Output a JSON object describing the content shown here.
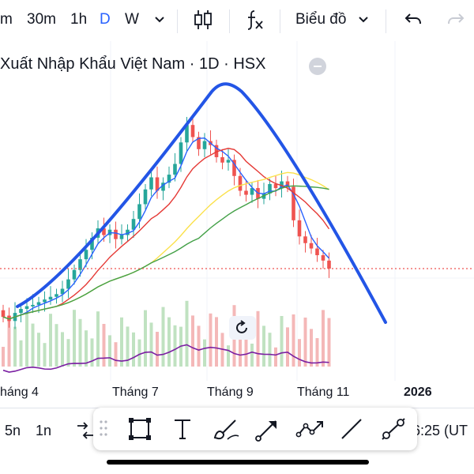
{
  "toolbar": {
    "intervals": [
      "m",
      "30m",
      "1h",
      "D",
      "W"
    ],
    "active_interval": "D",
    "indicators_icon": "fx-icon",
    "chart_type_label": "Biểu đồ"
  },
  "legend": {
    "symbol_title": "Xuất Nhập Khẩu Việt Nam · 1D · HSX"
  },
  "x_axis": {
    "labels": [
      "háng 4",
      "Tháng 7",
      "Tháng 9",
      "Tháng 11",
      "2026"
    ]
  },
  "bottom_bar": {
    "ranges": [
      "5n",
      "1n"
    ],
    "time_label": "6:25 (UT"
  },
  "drawing_tools": [
    "rectangle-tool-icon",
    "text-tool-icon",
    "brush-tool-icon",
    "arrow-tool-icon",
    "path-tool-icon",
    "line-tool-icon",
    "extended-line-tool-icon"
  ],
  "chart_data": {
    "type": "candlestick",
    "candles": [
      {
        "o": 51,
        "c": 46
      },
      {
        "o": 47,
        "c": 43
      },
      {
        "o": 43,
        "c": 49
      },
      {
        "o": 49,
        "c": 52
      },
      {
        "o": 52,
        "c": 54
      },
      {
        "o": 54,
        "c": 55
      },
      {
        "o": 55,
        "c": 57
      },
      {
        "o": 57,
        "c": 59
      },
      {
        "o": 59,
        "c": 61
      },
      {
        "o": 61,
        "c": 63
      },
      {
        "o": 63,
        "c": 67
      },
      {
        "o": 67,
        "c": 74
      },
      {
        "o": 74,
        "c": 81
      },
      {
        "o": 81,
        "c": 89
      },
      {
        "o": 89,
        "c": 96
      },
      {
        "o": 96,
        "c": 105
      },
      {
        "o": 105,
        "c": 112
      },
      {
        "o": 112,
        "c": 107
      },
      {
        "o": 107,
        "c": 111
      },
      {
        "o": 111,
        "c": 104
      },
      {
        "o": 104,
        "c": 107
      },
      {
        "o": 107,
        "c": 111
      },
      {
        "o": 111,
        "c": 119
      },
      {
        "o": 119,
        "c": 130
      },
      {
        "o": 130,
        "c": 141
      },
      {
        "o": 141,
        "c": 150
      },
      {
        "o": 150,
        "c": 140
      },
      {
        "o": 140,
        "c": 146
      },
      {
        "o": 146,
        "c": 152
      },
      {
        "o": 152,
        "c": 160
      },
      {
        "o": 160,
        "c": 176
      },
      {
        "o": 176,
        "c": 189
      },
      {
        "o": 189,
        "c": 180
      },
      {
        "o": 180,
        "c": 171
      },
      {
        "o": 171,
        "c": 177
      },
      {
        "o": 177,
        "c": 174
      },
      {
        "o": 174,
        "c": 165
      },
      {
        "o": 165,
        "c": 161
      },
      {
        "o": 161,
        "c": 163
      },
      {
        "o": 163,
        "c": 151
      },
      {
        "o": 151,
        "c": 140
      },
      {
        "o": 140,
        "c": 137
      },
      {
        "o": 137,
        "c": 142
      },
      {
        "o": 142,
        "c": 134
      },
      {
        "o": 134,
        "c": 138
      },
      {
        "o": 138,
        "c": 145
      },
      {
        "o": 145,
        "c": 142
      },
      {
        "o": 142,
        "c": 147
      },
      {
        "o": 147,
        "c": 143
      },
      {
        "o": 143,
        "c": 118
      },
      {
        "o": 118,
        "c": 106
      },
      {
        "o": 106,
        "c": 101
      },
      {
        "o": 101,
        "c": 97
      },
      {
        "o": 97,
        "c": 92
      },
      {
        "o": 92,
        "c": 88
      },
      {
        "o": 88,
        "c": 82
      }
    ],
    "last_price_line": 82,
    "ma_lines": [
      {
        "color": "#2962ff"
      },
      {
        "color": "#e53935"
      },
      {
        "color": "#fbe14b"
      },
      {
        "color": "#43a047"
      }
    ],
    "volume_color_up": "#a5d6a7",
    "volume_color_down": "#ef9a9a",
    "oscillator_color": "#7b1fa2",
    "trend_overlay_color": "#2355e6"
  }
}
